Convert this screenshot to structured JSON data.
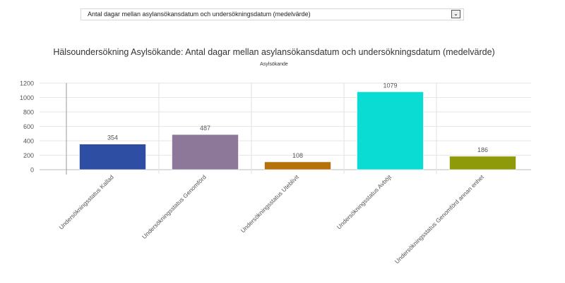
{
  "dropdown": {
    "selected": "Antal dagar mellan asylansökansdatum och undersökningsdatum (medelvärde)"
  },
  "chart_data": {
    "type": "bar",
    "title": "Hälsoundersökning Asylsökande: Antal dagar mellan asylansökansdatum och undersökningsdatum (medelvärde)",
    "subtitle": "Asylsökande",
    "categories": [
      "Undersökningsstatus Kallad",
      "Undersökningsstatus Genomförd",
      "Undersökningsstatus Uteblivit",
      "Undersökningsstatus Avböjt",
      "Undersökningsstatus Genomförd annan enhet"
    ],
    "values": [
      354,
      487,
      108,
      1079,
      186
    ],
    "colors": [
      "#2e4ea4",
      "#8e7899",
      "#b5720a",
      "#0adcd4",
      "#8e9a0a"
    ],
    "ylim": [
      0,
      1200
    ],
    "yticks": [
      0,
      200,
      400,
      600,
      800,
      1000,
      1200
    ],
    "xlabel": "",
    "ylabel": "",
    "grid": true
  }
}
